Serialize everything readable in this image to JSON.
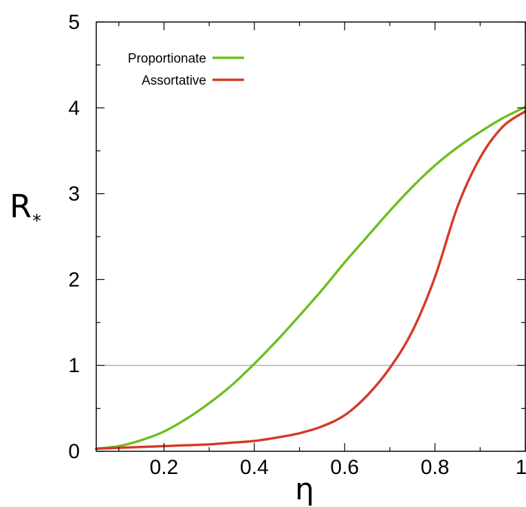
{
  "chart_data": {
    "type": "line",
    "xlabel": "η",
    "ylabel": "R",
    "ylabel_subscript": "*",
    "xlim": [
      0.05,
      1.0
    ],
    "ylim": [
      0,
      5
    ],
    "x_ticks": [
      0.2,
      0.4,
      0.6,
      0.8,
      1.0
    ],
    "x_tick_labels": [
      "0.2",
      "0.4",
      "0.6",
      "0.8",
      "1"
    ],
    "y_ticks": [
      0,
      1,
      2,
      3,
      4,
      5
    ],
    "y_tick_labels": [
      "0",
      "1",
      "2",
      "3",
      "4",
      "5"
    ],
    "grid": false,
    "legend_position": "top-left",
    "reference_line": {
      "y": 1,
      "color": "#999999"
    },
    "series": [
      {
        "name": "Proportionate",
        "color": "#6cbf22",
        "x": [
          0.05,
          0.1,
          0.15,
          0.2,
          0.25,
          0.3,
          0.35,
          0.4,
          0.45,
          0.5,
          0.55,
          0.6,
          0.65,
          0.7,
          0.75,
          0.8,
          0.85,
          0.9,
          0.95,
          1.0
        ],
        "y": [
          0.03,
          0.06,
          0.13,
          0.23,
          0.38,
          0.56,
          0.77,
          1.02,
          1.29,
          1.58,
          1.88,
          2.2,
          2.5,
          2.8,
          3.08,
          3.33,
          3.54,
          3.72,
          3.88,
          4.01
        ]
      },
      {
        "name": "Assortative",
        "color": "#d63a26",
        "x": [
          0.05,
          0.1,
          0.15,
          0.2,
          0.25,
          0.3,
          0.35,
          0.4,
          0.45,
          0.5,
          0.55,
          0.6,
          0.65,
          0.7,
          0.75,
          0.8,
          0.85,
          0.9,
          0.95,
          1.0
        ],
        "y": [
          0.03,
          0.04,
          0.05,
          0.06,
          0.07,
          0.08,
          0.1,
          0.12,
          0.16,
          0.21,
          0.29,
          0.42,
          0.65,
          0.97,
          1.4,
          2.03,
          2.85,
          3.42,
          3.78,
          3.96
        ]
      }
    ]
  }
}
